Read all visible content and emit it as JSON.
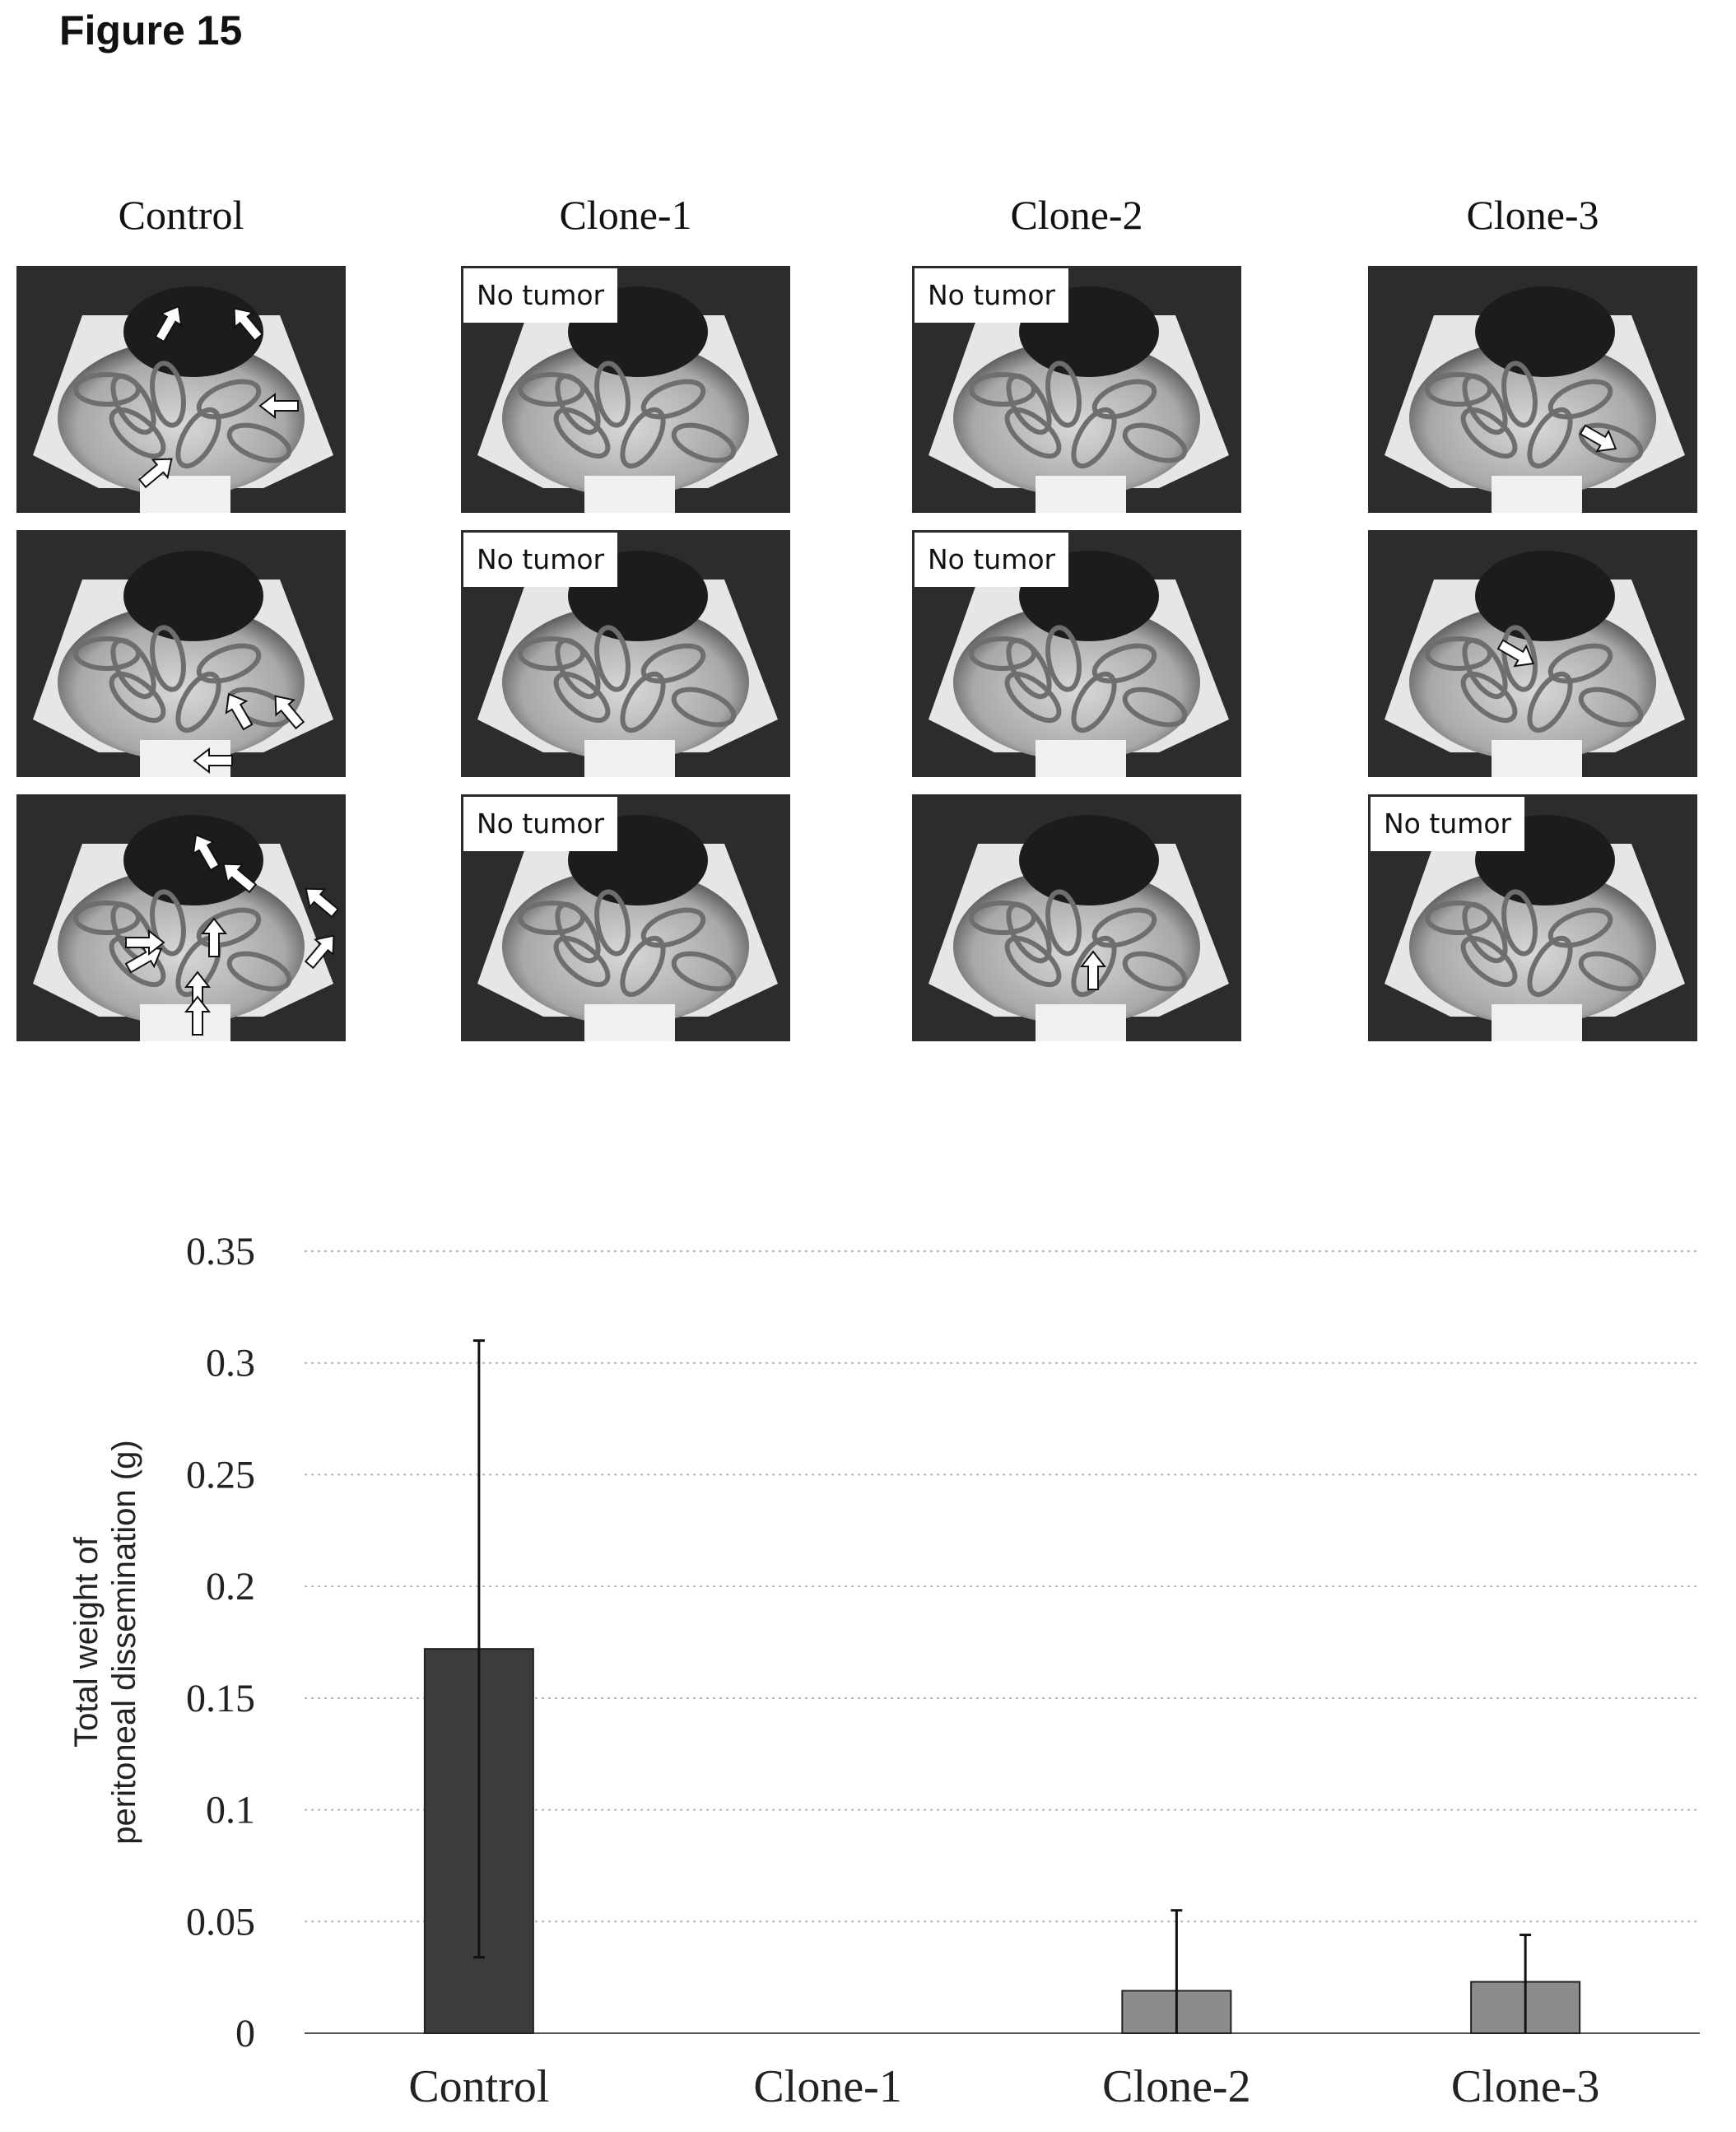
{
  "figure_title": "Figure 15",
  "photo_panels": {
    "columns": [
      {
        "label": "Control",
        "panels": [
          {
            "arrows": 4,
            "no_tumor": false
          },
          {
            "arrows": 3,
            "no_tumor": false
          },
          {
            "arrows": 9,
            "no_tumor": false
          }
        ]
      },
      {
        "label": "Clone-1",
        "panels": [
          {
            "arrows": 0,
            "no_tumor": true
          },
          {
            "arrows": 0,
            "no_tumor": true
          },
          {
            "arrows": 0,
            "no_tumor": true
          }
        ]
      },
      {
        "label": "Clone-2",
        "panels": [
          {
            "arrows": 0,
            "no_tumor": true
          },
          {
            "arrows": 0,
            "no_tumor": true
          },
          {
            "arrows": 1,
            "no_tumor": false
          }
        ]
      },
      {
        "label": "Clone-3",
        "panels": [
          {
            "arrows": 1,
            "no_tumor": false
          },
          {
            "arrows": 1,
            "no_tumor": false
          },
          {
            "arrows": 0,
            "no_tumor": true
          }
        ]
      }
    ],
    "no_tumor_label": "No tumor"
  },
  "chart_data": {
    "type": "bar",
    "categories": [
      "Control",
      "Clone-1",
      "Clone-2",
      "Clone-3"
    ],
    "values": [
      0.172,
      0,
      0.019,
      0.023
    ],
    "error_upper": [
      0.31,
      0,
      0.055,
      0.044
    ],
    "error_lower": [
      0.034,
      0,
      0,
      0
    ],
    "bar_colors": [
      "#3c3c3c",
      "#8c8c8c",
      "#8c8c8c",
      "#8c8c8c"
    ],
    "xlabel": "",
    "ylabel_lines": [
      "Total weight of",
      "peritoneal dissemination (g)"
    ],
    "ylim": [
      0,
      0.35
    ],
    "yticks": [
      "0",
      "0.05",
      "0.1",
      "0.15",
      "0.2",
      "0.25",
      "0.3",
      "0.35"
    ],
    "grid": true,
    "legend": "none"
  }
}
